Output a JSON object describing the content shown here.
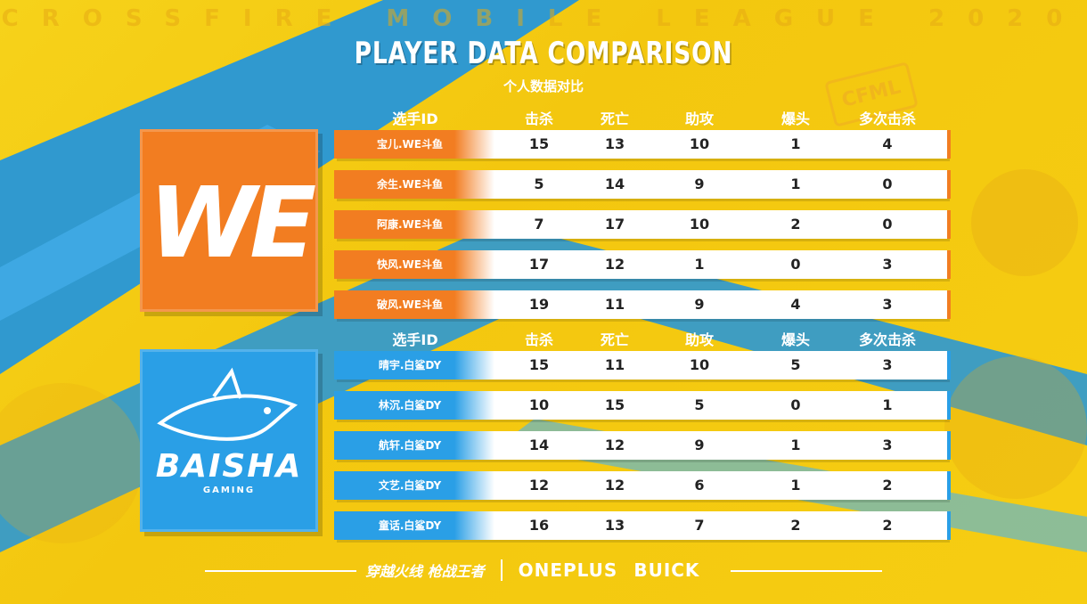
{
  "header": {
    "league": "CROSSFIRE MOBILE LEAGUE 2020",
    "title_en": "PLAYER DATA COMPARISON",
    "title_cn": "个人数据对比",
    "cfml_logo": "CFML"
  },
  "columns": [
    "选手ID",
    "击杀",
    "死亡",
    "助攻",
    "爆头",
    "多次击杀"
  ],
  "teams": [
    {
      "name": "WE",
      "logo_text": "WE",
      "color": "#f27d21",
      "players": [
        {
          "id": "宝儿.WE斗鱼",
          "kills": "15",
          "deaths": "13",
          "assists": "10",
          "headshots": "1",
          "multikills": "4"
        },
        {
          "id": "余生.WE斗鱼",
          "kills": "5",
          "deaths": "14",
          "assists": "9",
          "headshots": "1",
          "multikills": "0"
        },
        {
          "id": "阿康.WE斗鱼",
          "kills": "7",
          "deaths": "17",
          "assists": "10",
          "headshots": "2",
          "multikills": "0"
        },
        {
          "id": "快风.WE斗鱼",
          "kills": "17",
          "deaths": "12",
          "assists": "1",
          "headshots": "0",
          "multikills": "3"
        },
        {
          "id": "破风.WE斗鱼",
          "kills": "19",
          "deaths": "11",
          "assists": "9",
          "headshots": "4",
          "multikills": "3"
        }
      ]
    },
    {
      "name": "BAISHA",
      "logo_text": "BAISHA",
      "logo_sub": "GAMING",
      "color": "#2a9fe6",
      "players": [
        {
          "id": "晴宇.白鲨DY",
          "kills": "15",
          "deaths": "11",
          "assists": "10",
          "headshots": "5",
          "multikills": "3"
        },
        {
          "id": "林沉.白鲨DY",
          "kills": "10",
          "deaths": "15",
          "assists": "5",
          "headshots": "0",
          "multikills": "1"
        },
        {
          "id": "航轩.白鲨DY",
          "kills": "14",
          "deaths": "12",
          "assists": "9",
          "headshots": "1",
          "multikills": "3"
        },
        {
          "id": "文艺.白鲨DY",
          "kills": "12",
          "deaths": "12",
          "assists": "6",
          "headshots": "1",
          "multikills": "2"
        },
        {
          "id": "童话.白鲨DY",
          "kills": "16",
          "deaths": "13",
          "assists": "7",
          "headshots": "2",
          "multikills": "2"
        }
      ]
    }
  ],
  "footer": {
    "sponsors": [
      "穿越火线 枪战王者",
      "ONEPLUS",
      "BUICK"
    ]
  }
}
